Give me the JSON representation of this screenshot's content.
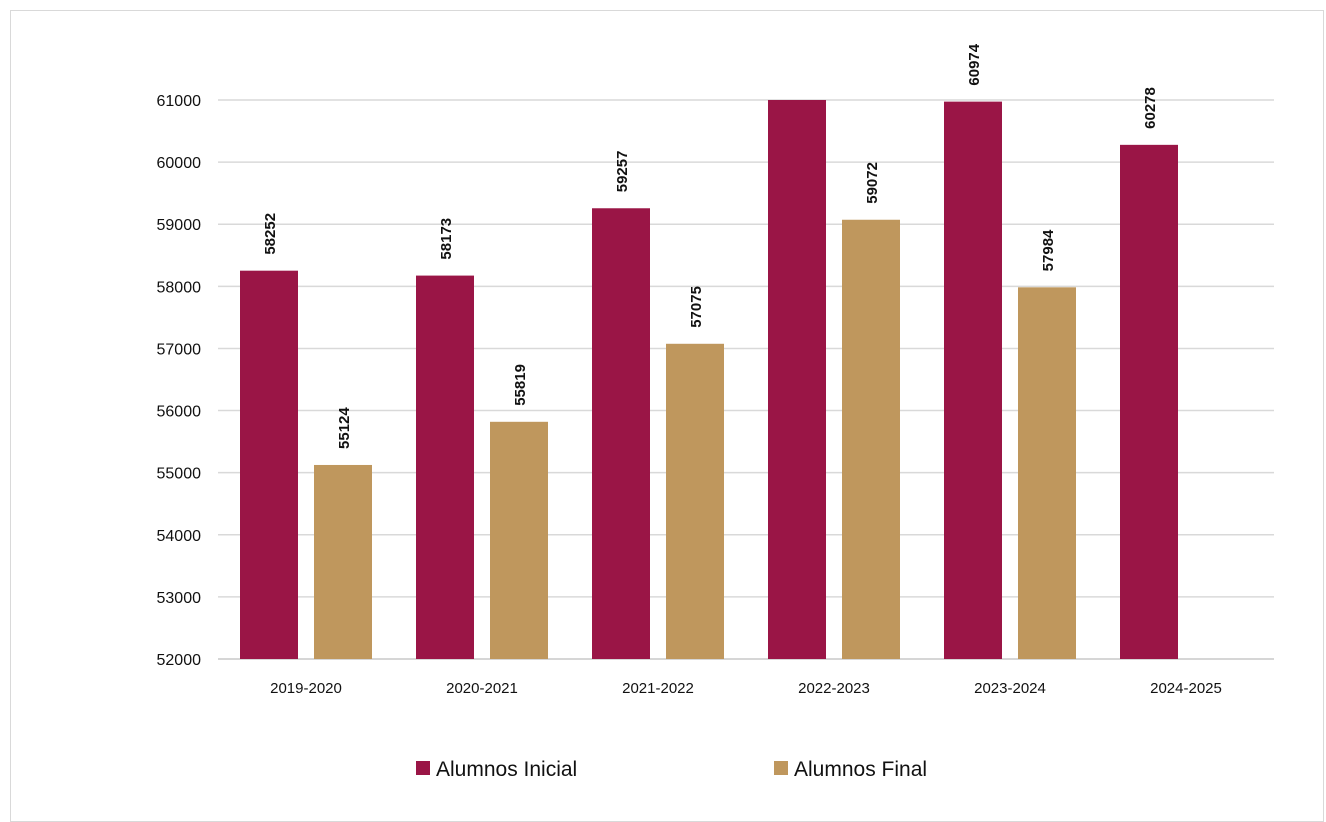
{
  "chart_data": {
    "type": "bar",
    "title": "",
    "xlabel": "",
    "ylabel": "",
    "categories": [
      "2019-2020",
      "2020-2021",
      "2021-2022",
      "2022-2023",
      "2023-2024",
      "2024-2025"
    ],
    "series": [
      {
        "name": "Alumnos Inicial",
        "color": "#9a1546",
        "values": [
          58252,
          58173,
          59257,
          61000,
          60974,
          60278
        ],
        "labels": [
          "58252",
          "58173",
          "59257",
          "",
          "60974",
          "60278"
        ]
      },
      {
        "name": "Alumnos Final",
        "color": "#bf975d",
        "values": [
          55124,
          55819,
          57075,
          59072,
          57984,
          null
        ],
        "labels": [
          "55124",
          "55819",
          "57075",
          "59072",
          "57984",
          ""
        ]
      }
    ],
    "ylim": [
      52000,
      61000
    ],
    "yticks": [
      52000,
      53000,
      54000,
      55000,
      56000,
      57000,
      58000,
      59000,
      60000,
      61000
    ],
    "grid": true,
    "legend_position": "bottom"
  }
}
